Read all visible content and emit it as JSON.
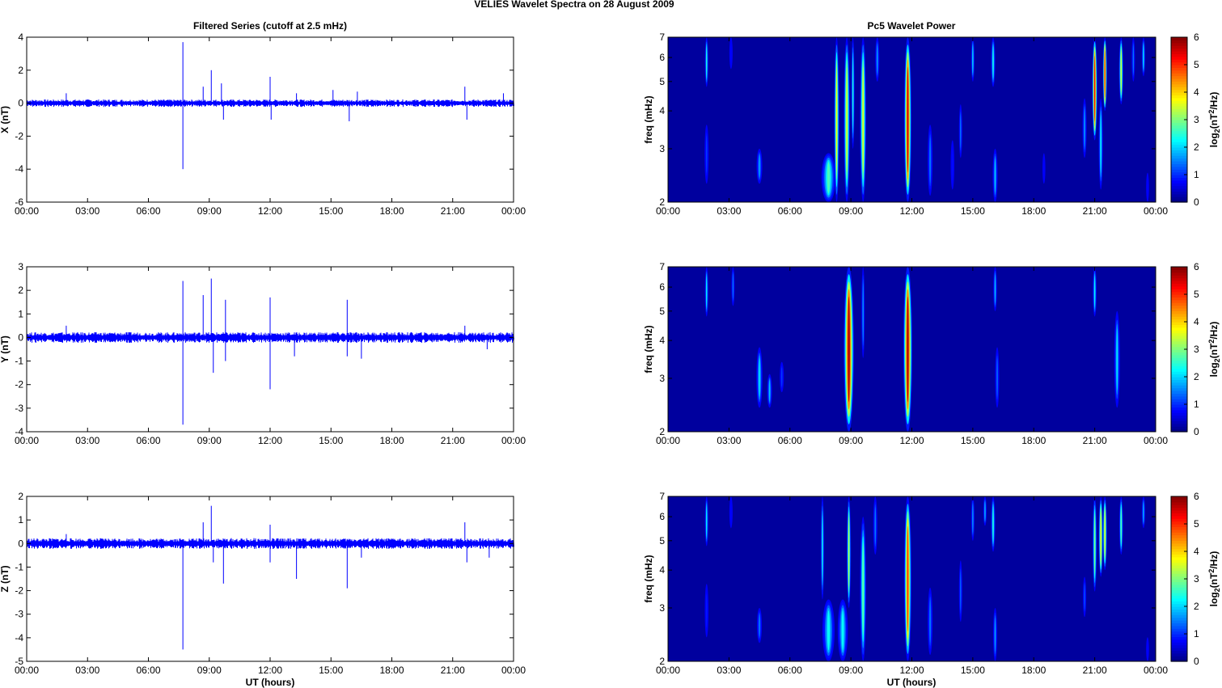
{
  "figure": {
    "suptitle": "VELIES Wavelet Spectra on 28 August     2009",
    "left_column_title": "Filtered Series (cutoff at 2.5 mHz)",
    "right_column_title": "Pc5 Wavelet Power",
    "xlabel": "UT (hours)"
  },
  "chart_data": [
    {
      "type": "line",
      "component": "X",
      "ylabel": "X (nT)",
      "xlim": [
        0,
        24
      ],
      "ylim": [
        -6,
        4
      ],
      "yticks": [
        -6,
        -4,
        -2,
        0,
        2,
        4
      ],
      "xtick_labels": [
        "00:00",
        "03:00",
        "06:00",
        "09:00",
        "12:00",
        "15:00",
        "18:00",
        "21:00",
        "00:00"
      ],
      "color": "#0000ff",
      "baseline_amplitude": 0.15,
      "spikes": [
        {
          "t": 1.95,
          "y": 0.6
        },
        {
          "t": 7.7,
          "y": 3.7
        },
        {
          "t": 7.7,
          "y": -4.0
        },
        {
          "t": 8.7,
          "y": 1.0
        },
        {
          "t": 9.1,
          "y": 2.0
        },
        {
          "t": 9.6,
          "y": 1.2
        },
        {
          "t": 9.7,
          "y": -1.0
        },
        {
          "t": 12.0,
          "y": 1.6
        },
        {
          "t": 12.05,
          "y": -1.0
        },
        {
          "t": 13.3,
          "y": 0.6
        },
        {
          "t": 15.1,
          "y": 0.8
        },
        {
          "t": 15.9,
          "y": -1.1
        },
        {
          "t": 16.3,
          "y": 0.7
        },
        {
          "t": 21.6,
          "y": 1.0
        },
        {
          "t": 21.7,
          "y": -1.0
        },
        {
          "t": 23.5,
          "y": 0.6
        }
      ]
    },
    {
      "type": "line",
      "component": "Y",
      "ylabel": "Y (nT)",
      "xlim": [
        0,
        24
      ],
      "ylim": [
        -4,
        3
      ],
      "yticks": [
        -4,
        -3,
        -2,
        -1,
        0,
        1,
        2,
        3
      ],
      "xtick_labels": [
        "00:00",
        "03:00",
        "06:00",
        "09:00",
        "12:00",
        "15:00",
        "18:00",
        "21:00",
        "00:00"
      ],
      "color": "#0000ff",
      "baseline_amplitude": 0.15,
      "spikes": [
        {
          "t": 1.95,
          "y": 0.5
        },
        {
          "t": 7.7,
          "y": 2.4
        },
        {
          "t": 7.7,
          "y": -3.7
        },
        {
          "t": 8.7,
          "y": 1.8
        },
        {
          "t": 9.1,
          "y": 2.5
        },
        {
          "t": 9.2,
          "y": -1.5
        },
        {
          "t": 9.8,
          "y": 1.6
        },
        {
          "t": 9.8,
          "y": -1.0
        },
        {
          "t": 12.0,
          "y": 1.7
        },
        {
          "t": 12.0,
          "y": -2.2
        },
        {
          "t": 13.2,
          "y": -0.8
        },
        {
          "t": 15.8,
          "y": 1.6
        },
        {
          "t": 15.8,
          "y": -0.8
        },
        {
          "t": 16.5,
          "y": -0.9
        },
        {
          "t": 21.6,
          "y": 0.5
        },
        {
          "t": 22.7,
          "y": -0.5
        }
      ]
    },
    {
      "type": "line",
      "component": "Z",
      "ylabel": "Z (nT)",
      "xlim": [
        0,
        24
      ],
      "ylim": [
        -5,
        2
      ],
      "yticks": [
        -5,
        -4,
        -3,
        -2,
        -1,
        0,
        1,
        2
      ],
      "xtick_labels": [
        "00:00",
        "03:00",
        "06:00",
        "09:00",
        "12:00",
        "15:00",
        "18:00",
        "21:00",
        "00:00"
      ],
      "color": "#0000ff",
      "baseline_amplitude": 0.15,
      "spikes": [
        {
          "t": 1.95,
          "y": 0.4
        },
        {
          "t": 7.7,
          "y": -4.5
        },
        {
          "t": 8.7,
          "y": 0.9
        },
        {
          "t": 9.1,
          "y": 1.6
        },
        {
          "t": 9.2,
          "y": -0.8
        },
        {
          "t": 9.7,
          "y": -1.7
        },
        {
          "t": 12.0,
          "y": 0.8
        },
        {
          "t": 12.0,
          "y": -0.8
        },
        {
          "t": 13.3,
          "y": -1.5
        },
        {
          "t": 15.8,
          "y": -1.9
        },
        {
          "t": 16.5,
          "y": -0.6
        },
        {
          "t": 21.6,
          "y": 0.9
        },
        {
          "t": 21.7,
          "y": -0.8
        },
        {
          "t": 22.8,
          "y": -0.6
        }
      ]
    },
    {
      "type": "heatmap",
      "component": "X",
      "ylabel": "freq (mHz)",
      "xlim": [
        0,
        24
      ],
      "ylim": [
        2,
        7
      ],
      "yscale": "log",
      "yticks": [
        2,
        3,
        4,
        5,
        6,
        7
      ],
      "xtick_labels": [
        "00:00",
        "03:00",
        "06:00",
        "09:00",
        "12:00",
        "15:00",
        "18:00",
        "21:00",
        "00:00"
      ],
      "colormap": "jet",
      "colorbar_label": "log2(nT^2/Hz)",
      "clim": [
        0,
        6
      ],
      "colorbar_ticks": [
        0,
        1,
        2,
        3,
        4,
        5,
        6
      ],
      "bursts": [
        {
          "t": 1.9,
          "f_lo": 4.8,
          "f_hi": 7,
          "p": 2.6,
          "w": 0.08
        },
        {
          "t": 1.9,
          "f_lo": 2.3,
          "f_hi": 3.6,
          "p": 1.2,
          "w": 0.1
        },
        {
          "t": 3.1,
          "f_lo": 5.5,
          "f_hi": 7,
          "p": 0.7,
          "w": 0.08
        },
        {
          "t": 4.5,
          "f_lo": 2.3,
          "f_hi": 3.0,
          "p": 1.8,
          "w": 0.14
        },
        {
          "t": 7.9,
          "f_lo": 2.0,
          "f_hi": 2.9,
          "p": 2.8,
          "w": 0.35
        },
        {
          "t": 8.3,
          "f_lo": 2.0,
          "f_hi": 7,
          "p": 4.0,
          "w": 0.12
        },
        {
          "t": 8.8,
          "f_lo": 2.0,
          "f_hi": 7,
          "p": 3.8,
          "w": 0.15
        },
        {
          "t": 9.1,
          "f_lo": 3.0,
          "f_hi": 7,
          "p": 2.6,
          "w": 0.08
        },
        {
          "t": 9.6,
          "f_lo": 2.0,
          "f_hi": 7,
          "p": 3.8,
          "w": 0.15
        },
        {
          "t": 10.3,
          "f_lo": 5.0,
          "f_hi": 7,
          "p": 1.8,
          "w": 0.1
        },
        {
          "t": 11.8,
          "f_lo": 2.0,
          "f_hi": 7,
          "p": 5.8,
          "w": 0.18
        },
        {
          "t": 12.9,
          "f_lo": 2.1,
          "f_hi": 3.6,
          "p": 1.6,
          "w": 0.12
        },
        {
          "t": 14.0,
          "f_lo": 2.2,
          "f_hi": 3.2,
          "p": 0.9,
          "w": 0.09
        },
        {
          "t": 14.4,
          "f_lo": 2.8,
          "f_hi": 4.2,
          "p": 1.6,
          "w": 0.08
        },
        {
          "t": 15.0,
          "f_lo": 5.0,
          "f_hi": 7,
          "p": 2.2,
          "w": 0.08
        },
        {
          "t": 16.0,
          "f_lo": 4.8,
          "f_hi": 7,
          "p": 2.5,
          "w": 0.1
        },
        {
          "t": 16.1,
          "f_lo": 2.0,
          "f_hi": 3.0,
          "p": 2.0,
          "w": 0.12
        },
        {
          "t": 18.5,
          "f_lo": 2.3,
          "f_hi": 2.9,
          "p": 0.5,
          "w": 0.07
        },
        {
          "t": 20.5,
          "f_lo": 2.8,
          "f_hi": 4.4,
          "p": 1.8,
          "w": 0.1
        },
        {
          "t": 21.0,
          "f_lo": 3.2,
          "f_hi": 7,
          "p": 5.6,
          "w": 0.12
        },
        {
          "t": 21.3,
          "f_lo": 2.2,
          "f_hi": 4.4,
          "p": 2.4,
          "w": 0.1
        },
        {
          "t": 21.5,
          "f_lo": 4.0,
          "f_hi": 7,
          "p": 5.4,
          "w": 0.1
        },
        {
          "t": 22.3,
          "f_lo": 4.2,
          "f_hi": 7,
          "p": 3.8,
          "w": 0.1
        },
        {
          "t": 22.9,
          "f_lo": 5.0,
          "f_hi": 7,
          "p": 1.6,
          "w": 0.08
        },
        {
          "t": 23.4,
          "f_lo": 5.2,
          "f_hi": 7,
          "p": 2.3,
          "w": 0.08
        },
        {
          "t": 23.6,
          "f_lo": 2.0,
          "f_hi": 2.5,
          "p": 0.8,
          "w": 0.07
        }
      ]
    },
    {
      "type": "heatmap",
      "component": "Y",
      "ylabel": "freq (mHz)",
      "xlim": [
        0,
        24
      ],
      "ylim": [
        2,
        7
      ],
      "yscale": "log",
      "yticks": [
        2,
        3,
        4,
        5,
        6,
        7
      ],
      "xtick_labels": [
        "00:00",
        "03:00",
        "06:00",
        "09:00",
        "12:00",
        "15:00",
        "18:00",
        "21:00",
        "00:00"
      ],
      "colormap": "jet",
      "colorbar_label": "log2(nT^2/Hz)",
      "clim": [
        0,
        6
      ],
      "colorbar_ticks": [
        0,
        1,
        2,
        3,
        4,
        5,
        6
      ],
      "bursts": [
        {
          "t": 1.9,
          "f_lo": 4.8,
          "f_hi": 7,
          "p": 2.4,
          "w": 0.08
        },
        {
          "t": 3.2,
          "f_lo": 5.2,
          "f_hi": 7,
          "p": 1.6,
          "w": 0.08
        },
        {
          "t": 4.5,
          "f_lo": 2.4,
          "f_hi": 3.8,
          "p": 2.2,
          "w": 0.15
        },
        {
          "t": 5.0,
          "f_lo": 2.4,
          "f_hi": 3.1,
          "p": 2.0,
          "w": 0.12
        },
        {
          "t": 5.6,
          "f_lo": 2.7,
          "f_hi": 3.4,
          "p": 1.2,
          "w": 0.1
        },
        {
          "t": 8.9,
          "f_lo": 2.0,
          "f_hi": 7,
          "p": 6.0,
          "w": 0.25
        },
        {
          "t": 9.6,
          "f_lo": 3.5,
          "f_hi": 7,
          "p": 1.8,
          "w": 0.08
        },
        {
          "t": 11.8,
          "f_lo": 2.0,
          "f_hi": 7,
          "p": 6.0,
          "w": 0.22
        },
        {
          "t": 16.1,
          "f_lo": 5.0,
          "f_hi": 7,
          "p": 2.0,
          "w": 0.09
        },
        {
          "t": 16.2,
          "f_lo": 2.4,
          "f_hi": 3.8,
          "p": 1.5,
          "w": 0.1
        },
        {
          "t": 21.0,
          "f_lo": 4.8,
          "f_hi": 7,
          "p": 2.4,
          "w": 0.09
        },
        {
          "t": 22.1,
          "f_lo": 2.4,
          "f_hi": 5.0,
          "p": 2.2,
          "w": 0.14
        }
      ]
    },
    {
      "type": "heatmap",
      "component": "Z",
      "ylabel": "freq (mHz)",
      "xlim": [
        0,
        24
      ],
      "ylim": [
        2,
        7
      ],
      "yscale": "log",
      "yticks": [
        2,
        3,
        4,
        5,
        6,
        7
      ],
      "xtick_labels": [
        "00:00",
        "03:00",
        "06:00",
        "09:00",
        "12:00",
        "15:00",
        "18:00",
        "21:00",
        "00:00"
      ],
      "colormap": "jet",
      "colorbar_label": "log2(nT^2/Hz)",
      "clim": [
        0,
        6
      ],
      "colorbar_ticks": [
        0,
        1,
        2,
        3,
        4,
        5,
        6
      ],
      "bursts": [
        {
          "t": 1.9,
          "f_lo": 4.8,
          "f_hi": 7,
          "p": 2.4,
          "w": 0.08
        },
        {
          "t": 1.9,
          "f_lo": 2.4,
          "f_hi": 3.6,
          "p": 1.0,
          "w": 0.09
        },
        {
          "t": 3.1,
          "f_lo": 5.5,
          "f_hi": 7,
          "p": 0.7,
          "w": 0.08
        },
        {
          "t": 4.5,
          "f_lo": 2.3,
          "f_hi": 3.0,
          "p": 1.6,
          "w": 0.12
        },
        {
          "t": 7.6,
          "f_lo": 3.2,
          "f_hi": 7,
          "p": 2.5,
          "w": 0.08
        },
        {
          "t": 7.9,
          "f_lo": 2.0,
          "f_hi": 3.2,
          "p": 2.4,
          "w": 0.3
        },
        {
          "t": 8.6,
          "f_lo": 2.0,
          "f_hi": 3.2,
          "p": 2.4,
          "w": 0.25
        },
        {
          "t": 8.9,
          "f_lo": 3.0,
          "f_hi": 7,
          "p": 3.6,
          "w": 0.1
        },
        {
          "t": 9.6,
          "f_lo": 2.0,
          "f_hi": 6.0,
          "p": 3.0,
          "w": 0.15
        },
        {
          "t": 10.2,
          "f_lo": 4.5,
          "f_hi": 7,
          "p": 1.6,
          "w": 0.1
        },
        {
          "t": 11.8,
          "f_lo": 2.0,
          "f_hi": 7,
          "p": 5.2,
          "w": 0.18
        },
        {
          "t": 12.9,
          "f_lo": 2.1,
          "f_hi": 3.5,
          "p": 1.6,
          "w": 0.12
        },
        {
          "t": 14.4,
          "f_lo": 2.7,
          "f_hi": 4.3,
          "p": 1.5,
          "w": 0.08
        },
        {
          "t": 15.0,
          "f_lo": 5.0,
          "f_hi": 7,
          "p": 1.8,
          "w": 0.08
        },
        {
          "t": 15.6,
          "f_lo": 5.6,
          "f_hi": 7,
          "p": 2.0,
          "w": 0.08
        },
        {
          "t": 16.0,
          "f_lo": 4.6,
          "f_hi": 7,
          "p": 2.6,
          "w": 0.1
        },
        {
          "t": 16.1,
          "f_lo": 2.0,
          "f_hi": 3.0,
          "p": 1.8,
          "w": 0.1
        },
        {
          "t": 20.5,
          "f_lo": 2.8,
          "f_hi": 3.8,
          "p": 1.4,
          "w": 0.08
        },
        {
          "t": 21.0,
          "f_lo": 3.4,
          "f_hi": 7,
          "p": 3.2,
          "w": 0.1
        },
        {
          "t": 21.3,
          "f_lo": 3.8,
          "f_hi": 7,
          "p": 4.2,
          "w": 0.1
        },
        {
          "t": 21.5,
          "f_lo": 4.0,
          "f_hi": 7,
          "p": 4.0,
          "w": 0.1
        },
        {
          "t": 22.3,
          "f_lo": 4.5,
          "f_hi": 7,
          "p": 3.0,
          "w": 0.09
        },
        {
          "t": 23.4,
          "f_lo": 5.5,
          "f_hi": 7,
          "p": 2.0,
          "w": 0.08
        },
        {
          "t": 23.6,
          "f_lo": 2.0,
          "f_hi": 2.4,
          "p": 0.8,
          "w": 0.07
        }
      ]
    }
  ]
}
